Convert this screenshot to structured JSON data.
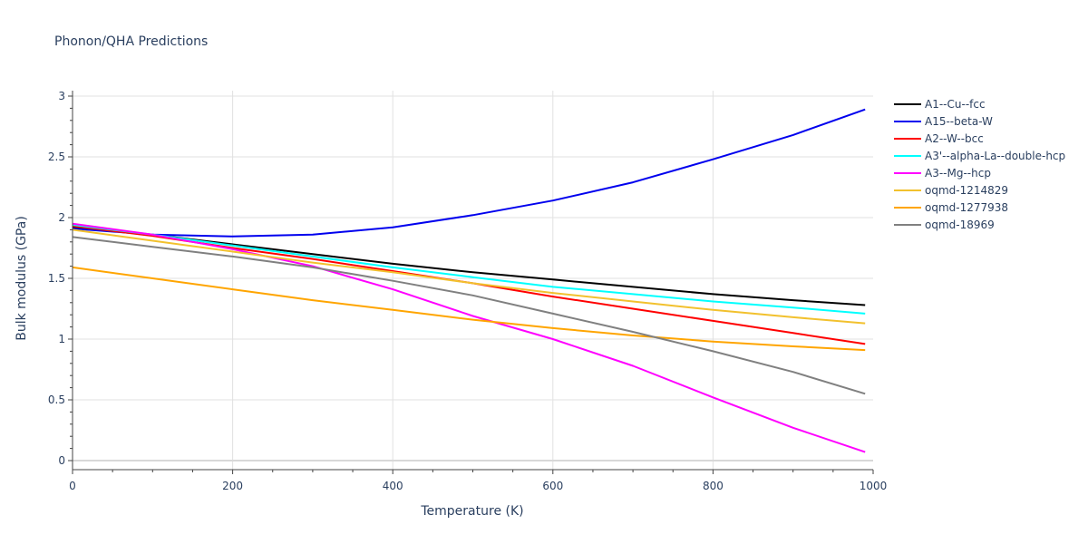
{
  "chart_data": {
    "type": "line",
    "title": "Phonon/QHA Predictions",
    "xlabel": "Temperature (K)",
    "ylabel": "Bulk modulus (GPa)",
    "xlim": [
      0,
      1000
    ],
    "ylim": [
      -0.08,
      3.05
    ],
    "x_ticks": [
      0,
      200,
      400,
      600,
      800,
      1000
    ],
    "y_ticks": [
      0,
      0.5,
      1,
      1.5,
      2,
      2.5,
      3
    ],
    "y_tick_labels": [
      "0",
      "0.5",
      "1",
      "1.5",
      "2",
      "2.5",
      "3"
    ],
    "grid": true,
    "legend_position": "right",
    "x": [
      0,
      100,
      200,
      300,
      400,
      500,
      600,
      700,
      800,
      900,
      990
    ],
    "series": [
      {
        "name": "A1--Cu--fcc",
        "color": "#000000",
        "values": [
          1.92,
          1.86,
          1.78,
          1.7,
          1.62,
          1.55,
          1.49,
          1.43,
          1.37,
          1.32,
          1.28
        ]
      },
      {
        "name": "A15--beta-W",
        "color": "#0000ee",
        "values": [
          1.91,
          1.86,
          1.845,
          1.86,
          1.92,
          2.02,
          2.14,
          2.29,
          2.48,
          2.68,
          2.89
        ]
      },
      {
        "name": "A2--W--bcc",
        "color": "#ff0000",
        "values": [
          1.93,
          1.85,
          1.75,
          1.66,
          1.56,
          1.46,
          1.35,
          1.25,
          1.15,
          1.05,
          0.96
        ]
      },
      {
        "name": "A3'--alpha-La--double-hcp",
        "color": "#00ffff",
        "values": [
          1.94,
          1.86,
          1.77,
          1.68,
          1.59,
          1.51,
          1.43,
          1.37,
          1.31,
          1.26,
          1.21
        ]
      },
      {
        "name": "A3--Mg--hcp",
        "color": "#ff00ff",
        "values": [
          1.95,
          1.86,
          1.74,
          1.6,
          1.41,
          1.19,
          1.0,
          0.78,
          0.52,
          0.27,
          0.07
        ]
      },
      {
        "name": "oqmd-1214829",
        "color": "#f2c12e",
        "values": [
          1.9,
          1.81,
          1.72,
          1.63,
          1.55,
          1.46,
          1.38,
          1.31,
          1.24,
          1.18,
          1.13
        ]
      },
      {
        "name": "oqmd-1277938",
        "color": "#ffa500",
        "values": [
          1.59,
          1.5,
          1.41,
          1.32,
          1.24,
          1.16,
          1.09,
          1.03,
          0.98,
          0.94,
          0.91
        ]
      },
      {
        "name": "oqmd-18969",
        "color": "#808080",
        "values": [
          1.84,
          1.76,
          1.68,
          1.59,
          1.48,
          1.36,
          1.21,
          1.06,
          0.9,
          0.73,
          0.55
        ]
      }
    ]
  }
}
